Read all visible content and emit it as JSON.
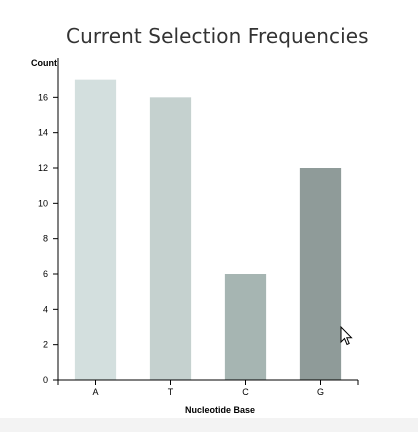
{
  "chart_data": {
    "type": "bar",
    "title": "Current Selection Frequencies",
    "xlabel": "Nucleotide Base",
    "ylabel": "Count",
    "categories": [
      "A",
      "T",
      "C",
      "G"
    ],
    "values": [
      17,
      16,
      6,
      12
    ],
    "ylim": [
      0,
      18
    ],
    "yticks": [
      0,
      2,
      4,
      6,
      8,
      10,
      12,
      14,
      16
    ],
    "bar_colors": [
      "#d3dfde",
      "#c5d1cf",
      "#a6b5b2",
      "#8f9b99"
    ],
    "grid": false,
    "legend": "none"
  },
  "cursor_icon": "mouse-pointer-icon"
}
